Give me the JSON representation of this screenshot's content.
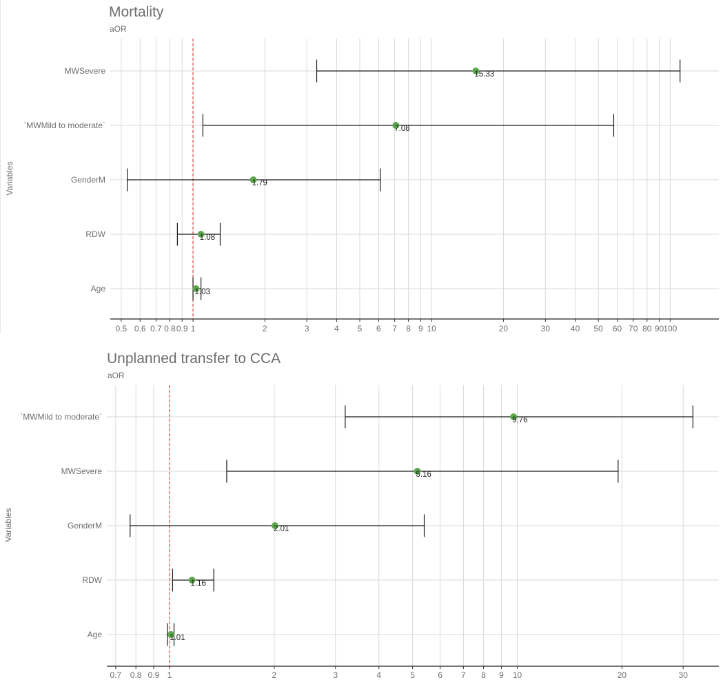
{
  "chart_data": [
    {
      "type": "forest",
      "title": "Mortality",
      "xlabel": "aOR",
      "ylabel": "Variables",
      "x_scale": "log",
      "xlim": [
        0.45,
        160
      ],
      "reference_line": 1,
      "grid": true,
      "x_ticks": [
        {
          "value": 0.5,
          "label": "0.5"
        },
        {
          "value": 0.6,
          "label": "0.6"
        },
        {
          "value": 0.7,
          "label": "0.7"
        },
        {
          "value": 0.8,
          "label": "0.8"
        },
        {
          "value": 0.9,
          "label": "0.9"
        },
        {
          "value": 1,
          "label": "1"
        },
        {
          "value": 2,
          "label": "2"
        },
        {
          "value": 3,
          "label": "3"
        },
        {
          "value": 4,
          "label": "4"
        },
        {
          "value": 5,
          "label": "5"
        },
        {
          "value": 6,
          "label": "6"
        },
        {
          "value": 7,
          "label": "7"
        },
        {
          "value": 8,
          "label": "8"
        },
        {
          "value": 9,
          "label": "9"
        },
        {
          "value": 10,
          "label": "10"
        },
        {
          "value": 20,
          "label": "20"
        },
        {
          "value": 30,
          "label": "30"
        },
        {
          "value": 40,
          "label": "40"
        },
        {
          "value": 50,
          "label": "50"
        },
        {
          "value": 60,
          "label": "60"
        },
        {
          "value": 70,
          "label": "70"
        },
        {
          "value": 80,
          "label": "80"
        },
        {
          "value": 90,
          "label": "90"
        },
        {
          "value": 100,
          "label": "100"
        }
      ],
      "rows": [
        {
          "variable": "MWSevere",
          "estimate": 15.33,
          "label": "15.33",
          "lower": 3.3,
          "upper": 110
        },
        {
          "variable": "`MWMild to moderate`",
          "estimate": 7.08,
          "label": "7.08",
          "lower": 1.1,
          "upper": 58
        },
        {
          "variable": "GenderM",
          "estimate": 1.79,
          "label": "1.79",
          "lower": 0.53,
          "upper": 6.1
        },
        {
          "variable": "RDW",
          "estimate": 1.08,
          "label": "1.08",
          "lower": 0.86,
          "upper": 1.3
        },
        {
          "variable": "Age",
          "estimate": 1.03,
          "label": "1.03",
          "lower": 1.0,
          "upper": 1.08
        }
      ],
      "colors": {
        "point": "#5da84e",
        "ref_line": "#e0463c",
        "whisker": "#1a1a1a",
        "grid": "#d9d9d9"
      }
    },
    {
      "type": "forest",
      "title": "Unplanned transfer to CCA",
      "xlabel": "aOR",
      "ylabel": "Variables",
      "x_scale": "log",
      "xlim": [
        0.66,
        38
      ],
      "reference_line": 1,
      "grid": true,
      "x_ticks": [
        {
          "value": 0.7,
          "label": "0.7"
        },
        {
          "value": 0.8,
          "label": "0.8"
        },
        {
          "value": 0.9,
          "label": "0.9"
        },
        {
          "value": 1,
          "label": "1"
        },
        {
          "value": 2,
          "label": "2"
        },
        {
          "value": 3,
          "label": "3"
        },
        {
          "value": 4,
          "label": "4"
        },
        {
          "value": 5,
          "label": "5"
        },
        {
          "value": 6,
          "label": "6"
        },
        {
          "value": 7,
          "label": "7"
        },
        {
          "value": 8,
          "label": "8"
        },
        {
          "value": 9,
          "label": "9"
        },
        {
          "value": 10,
          "label": "10"
        },
        {
          "value": 20,
          "label": "20"
        },
        {
          "value": 30,
          "label": "30"
        }
      ],
      "rows": [
        {
          "variable": "`MWMild to moderate`",
          "estimate": 9.76,
          "label": "9.76",
          "lower": 3.2,
          "upper": 32
        },
        {
          "variable": "MWSevere",
          "estimate": 5.16,
          "label": "5.16",
          "lower": 1.46,
          "upper": 19.5
        },
        {
          "variable": "GenderM",
          "estimate": 2.01,
          "label": "2.01",
          "lower": 0.77,
          "upper": 5.4
        },
        {
          "variable": "RDW",
          "estimate": 1.16,
          "label": "1.16",
          "lower": 1.02,
          "upper": 1.34
        },
        {
          "variable": "Age",
          "estimate": 1.01,
          "label": "1.01",
          "lower": 0.985,
          "upper": 1.03
        }
      ],
      "colors": {
        "point": "#5da84e",
        "ref_line": "#e0463c",
        "whisker": "#1a1a1a",
        "grid": "#d9d9d9"
      }
    }
  ]
}
